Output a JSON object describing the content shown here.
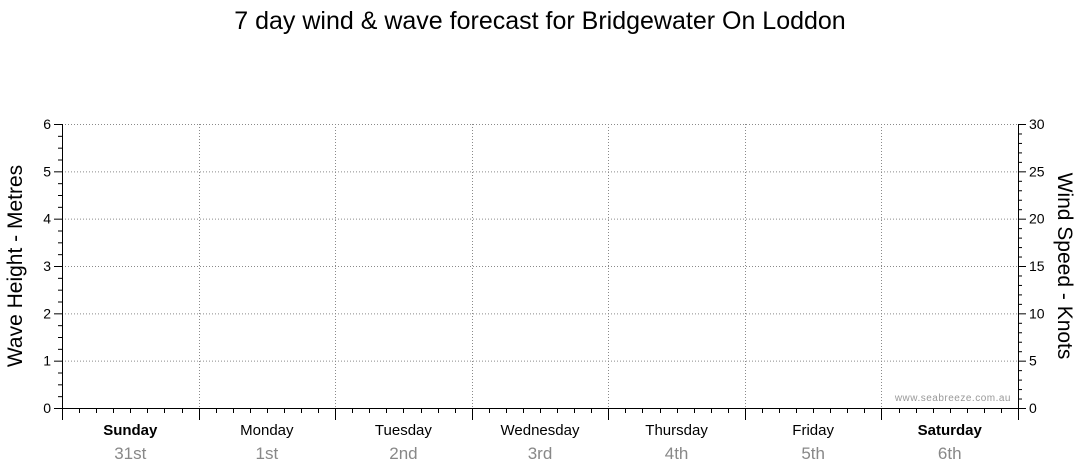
{
  "chart_data": {
    "type": "line",
    "title": "7 day wind & wave forecast for Bridgewater On Loddon",
    "ylabel_left": "Wave Height - Metres",
    "ylabel_right": "Wind Speed - Knots",
    "ylim_left": [
      0,
      6
    ],
    "ylim_right": [
      0,
      30
    ],
    "yticks_left": [
      "0",
      "1",
      "2",
      "3",
      "4",
      "5",
      "6"
    ],
    "yticks_right": [
      "0",
      "5",
      "10",
      "15",
      "20",
      "25",
      "30"
    ],
    "grid": true,
    "days": [
      {
        "name": "Sunday",
        "date": "31st",
        "bold": true
      },
      {
        "name": "Monday",
        "date": "1st",
        "bold": false
      },
      {
        "name": "Tuesday",
        "date": "2nd",
        "bold": false
      },
      {
        "name": "Wednesday",
        "date": "3rd",
        "bold": false
      },
      {
        "name": "Thursday",
        "date": "4th",
        "bold": false
      },
      {
        "name": "Friday",
        "date": "5th",
        "bold": false
      },
      {
        "name": "Saturday",
        "date": "6th",
        "bold": true
      }
    ],
    "series": []
  },
  "watermark": "www.seabreeze.com.au"
}
